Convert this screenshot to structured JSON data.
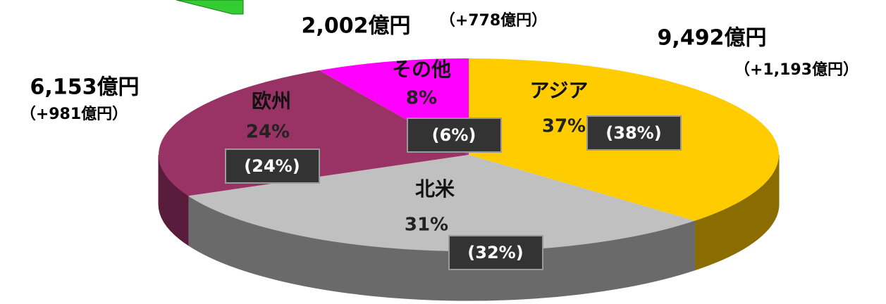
{
  "chart_data": {
    "type": "pie3d",
    "categories": [
      "アジア",
      "北米",
      "欧州",
      "その他"
    ],
    "values": [
      37,
      31,
      24,
      8
    ],
    "value_labels": [
      "37%",
      "31%",
      "24%",
      "8%"
    ],
    "previous_value_labels": [
      "(38%)",
      "(32%)",
      "(24%)",
      "(6%)"
    ],
    "amount_labels": [
      "9,492億円",
      null,
      "6,153億円",
      "2,002億円"
    ],
    "change_labels": [
      "（+1,193億円）",
      null,
      "（+981億円）",
      "（+778億円）"
    ],
    "colors": [
      "#ffcc00",
      "#c0c0c0",
      "#993366",
      "#ff00ff"
    ],
    "side_colors": [
      "#8a6c00",
      "#6a6a6a",
      "#5a1c3c",
      "#990099"
    ]
  }
}
